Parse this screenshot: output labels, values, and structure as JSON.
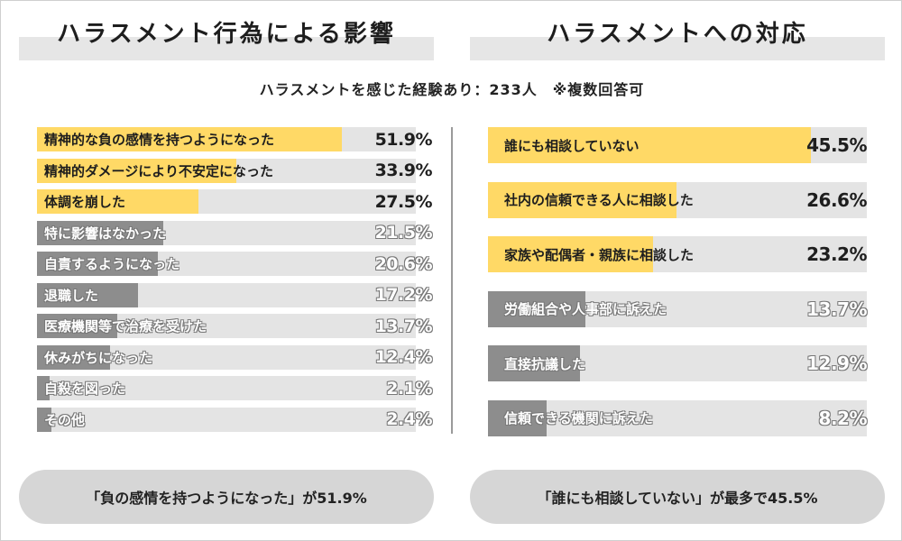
{
  "left_panel": {
    "title": "ハラスメント行為による影響"
  },
  "right_panel": {
    "title": "ハラスメントへの対応"
  },
  "subtitle": "ハラスメントを感じた経験あり：233人　※複数回答可",
  "colors": {
    "highlight": "#ffd966",
    "muted": "#8d8d8d",
    "track": "#e4e4e4"
  },
  "chart_data": [
    {
      "type": "bar",
      "orientation": "horizontal",
      "title": "ハラスメント行為による影響",
      "unit": "%",
      "xlim": [
        0,
        100
      ],
      "categories": [
        "精神的な負の感情を持つようになった",
        "精神的ダメージにより不安定になった",
        "体調を崩した",
        "特に影響はなかった",
        "自責するようになった",
        "退職した",
        "医療機関等で治療を受けた",
        "休みがちになった",
        "自殺を図った",
        "その他"
      ],
      "values": [
        51.9,
        33.9,
        27.5,
        21.5,
        20.6,
        17.2,
        13.7,
        12.4,
        2.1,
        2.4
      ],
      "labels": [
        "51.9%",
        "33.9%",
        "27.5%",
        "21.5%",
        "20.6%",
        "17.2%",
        "13.7%",
        "12.4%",
        "2.1%",
        "2.4%"
      ],
      "highlighted": [
        true,
        true,
        true,
        false,
        false,
        false,
        false,
        false,
        false,
        false
      ]
    },
    {
      "type": "bar",
      "orientation": "horizontal",
      "title": "ハラスメントへの対応",
      "unit": "%",
      "xlim": [
        0,
        100
      ],
      "categories": [
        "誰にも相談していない",
        "社内の信頼できる人に相談した",
        "家族や配偶者・親族に相談した",
        "労働組合や人事部に訴えた",
        "直接抗議した",
        "信頼できる機関に訴えた"
      ],
      "values": [
        45.5,
        26.6,
        23.2,
        13.7,
        12.9,
        8.2
      ],
      "labels": [
        "45.5%",
        "26.6%",
        "23.2%",
        "13.7%",
        "12.9%",
        "8.2%"
      ],
      "highlighted": [
        true,
        true,
        true,
        false,
        false,
        false
      ]
    }
  ],
  "summary": {
    "left": "「負の感情を持つようになった」が51.9%",
    "right": "「誰にも相談していない」が最多で45.5%"
  }
}
